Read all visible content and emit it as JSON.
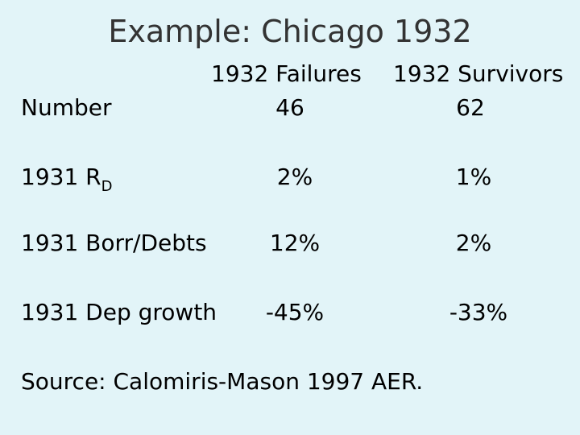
{
  "slide": {
    "title": "Example: Chicago 1932"
  },
  "table": {
    "headers": [
      "1932 Failures",
      "1932 Survivors"
    ],
    "rows": [
      {
        "label": "Number",
        "failures": "46",
        "survivors": "62"
      },
      {
        "label": "1931 R",
        "label_subscript": "D",
        "failures": "2%",
        "survivors": "1%"
      },
      {
        "label": "1931 Borr/Debts",
        "failures": "12%",
        "survivors": "2%"
      },
      {
        "label": "1931 Dep growth",
        "failures": "-45%",
        "survivors": "-33%"
      }
    ]
  },
  "source": "Source: Calomiris-Mason 1997 AER."
}
